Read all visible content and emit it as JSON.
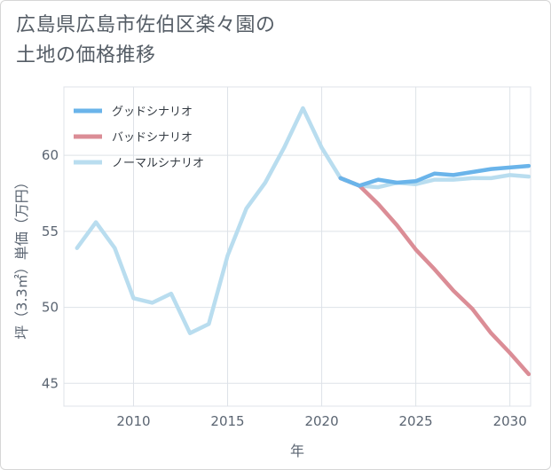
{
  "chart_data": {
    "type": "line",
    "title_lines": [
      "広島県広島市佐伯区楽々園の",
      "土地の価格推移"
    ],
    "xlabel": "年",
    "ylabel": "坪（3.3㎡）単価（万円）",
    "xlim": [
      2006.3,
      2031.1
    ],
    "ylim": [
      43.5,
      64.5
    ],
    "x_ticks": [
      2010,
      2015,
      2020,
      2025,
      2030
    ],
    "y_ticks": [
      45,
      50,
      55,
      60
    ],
    "grid": true,
    "legend_position": "top-left",
    "series": [
      {
        "name": "グッドシナリオ",
        "color": "#6ab4ea",
        "x": [
          2021,
          2022,
          2023,
          2024,
          2025,
          2026,
          2027,
          2028,
          2029,
          2030,
          2031
        ],
        "y": [
          58.5,
          58.0,
          58.4,
          58.2,
          58.3,
          58.8,
          58.7,
          58.9,
          59.1,
          59.2,
          59.3
        ]
      },
      {
        "name": "バッドシナリオ",
        "color": "#db8d96",
        "x": [
          2021,
          2022,
          2023,
          2024,
          2025,
          2026,
          2027,
          2028,
          2029,
          2030,
          2031
        ],
        "y": [
          58.5,
          58.0,
          56.8,
          55.4,
          53.8,
          52.5,
          51.1,
          49.9,
          48.3,
          47.0,
          45.6
        ]
      },
      {
        "name": "ノーマルシナリオ",
        "color": "#b9ddef",
        "x": [
          2007,
          2008,
          2009,
          2010,
          2011,
          2012,
          2013,
          2014,
          2015,
          2016,
          2017,
          2018,
          2019,
          2020,
          2021,
          2022,
          2023,
          2024,
          2025,
          2026,
          2027,
          2028,
          2029,
          2030,
          2031
        ],
        "y": [
          53.9,
          55.6,
          53.9,
          50.6,
          50.3,
          50.9,
          48.3,
          48.9,
          53.4,
          56.5,
          58.2,
          60.5,
          63.1,
          60.5,
          58.5,
          58.0,
          57.9,
          58.2,
          58.1,
          58.4,
          58.4,
          58.5,
          58.5,
          58.7,
          58.6
        ]
      }
    ]
  }
}
